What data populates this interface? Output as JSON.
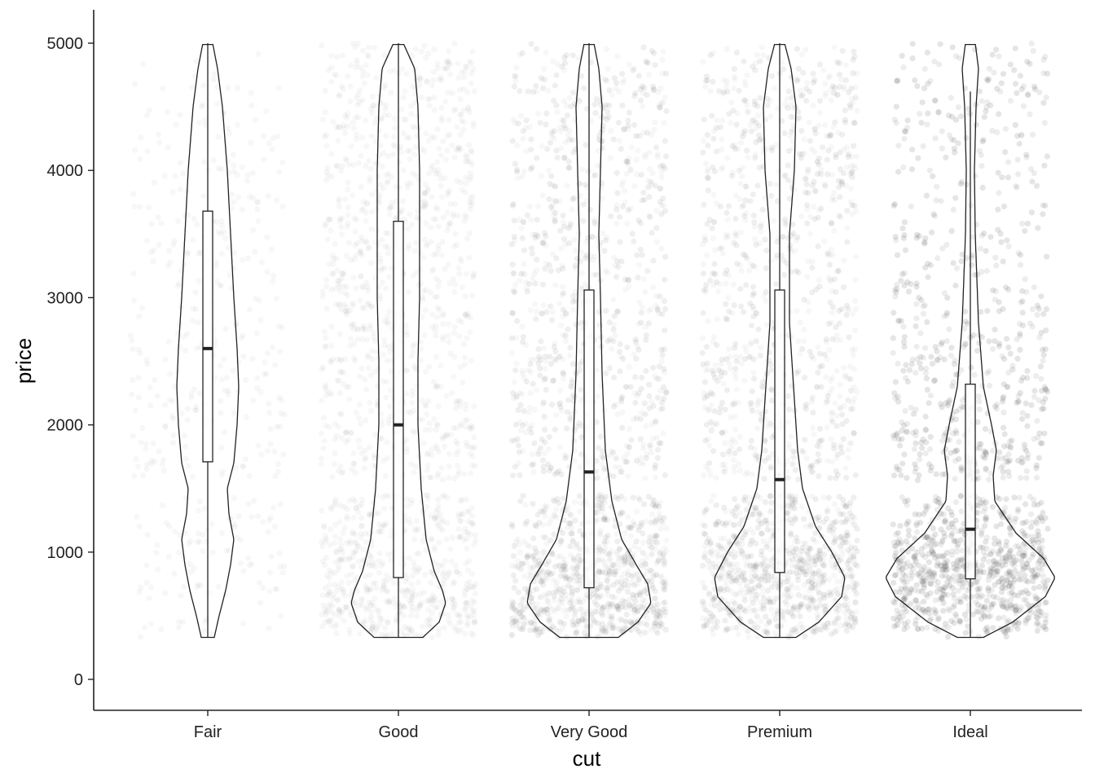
{
  "chart_data": {
    "type": "violin",
    "title": "",
    "xlabel": "cut",
    "ylabel": "price",
    "ylim": [
      -250,
      5250
    ],
    "yticks": [
      0,
      1000,
      2000,
      3000,
      4000,
      5000
    ],
    "ytick_labels": [
      "0",
      "1000",
      "2000",
      "3000",
      "4000",
      "5000"
    ],
    "categories": [
      "Fair",
      "Good",
      "Very Good",
      "Premium",
      "Ideal"
    ],
    "grid": false,
    "legend": "none",
    "colors": {
      "ink": "#222222",
      "points": "#5a5a5a",
      "background": "#ffffff"
    },
    "point_gap": [
      1450,
      1560
    ],
    "groups": [
      {
        "name": "Fair",
        "n_points": 420,
        "point_alpha": 0.05,
        "box": {
          "q1": 1710,
          "median": 2600,
          "q3": 3680,
          "whisker_low": 330,
          "whisker_high": 5000
        },
        "violin": [
          [
            330,
            8
          ],
          [
            500,
            14
          ],
          [
            700,
            22
          ],
          [
            900,
            28
          ],
          [
            1100,
            32
          ],
          [
            1300,
            26
          ],
          [
            1500,
            24
          ],
          [
            1700,
            32
          ],
          [
            2000,
            36
          ],
          [
            2300,
            38
          ],
          [
            2600,
            36
          ],
          [
            3000,
            32
          ],
          [
            3500,
            28
          ],
          [
            4000,
            24
          ],
          [
            4500,
            18
          ],
          [
            4800,
            12
          ],
          [
            5000,
            6
          ]
        ]
      },
      {
        "name": "Good",
        "n_points": 1500,
        "point_alpha": 0.05,
        "box": {
          "q1": 800,
          "median": 2000,
          "q3": 3600,
          "whisker_low": 330,
          "whisker_high": 5000
        },
        "violin": [
          [
            330,
            30
          ],
          [
            450,
            50
          ],
          [
            600,
            58
          ],
          [
            700,
            54
          ],
          [
            850,
            44
          ],
          [
            1100,
            34
          ],
          [
            1500,
            28
          ],
          [
            2000,
            24
          ],
          [
            2500,
            24
          ],
          [
            3000,
            26
          ],
          [
            3500,
            26
          ],
          [
            4000,
            26
          ],
          [
            4500,
            24
          ],
          [
            4800,
            20
          ],
          [
            5000,
            6
          ]
        ]
      },
      {
        "name": "Very Good",
        "n_points": 2600,
        "point_alpha": 0.05,
        "box": {
          "q1": 720,
          "median": 1630,
          "q3": 3060,
          "whisker_low": 330,
          "whisker_high": 5000
        },
        "violin": [
          [
            330,
            36
          ],
          [
            450,
            60
          ],
          [
            600,
            76
          ],
          [
            750,
            72
          ],
          [
            900,
            58
          ],
          [
            1100,
            40
          ],
          [
            1400,
            28
          ],
          [
            1800,
            20
          ],
          [
            2400,
            16
          ],
          [
            3000,
            14
          ],
          [
            3500,
            12
          ],
          [
            4000,
            14
          ],
          [
            4500,
            16
          ],
          [
            4800,
            12
          ],
          [
            5000,
            6
          ]
        ]
      },
      {
        "name": "Premium",
        "n_points": 2600,
        "point_alpha": 0.05,
        "box": {
          "q1": 840,
          "median": 1570,
          "q3": 3060,
          "whisker_low": 330,
          "whisker_high": 5000
        },
        "violin": [
          [
            330,
            20
          ],
          [
            450,
            48
          ],
          [
            650,
            76
          ],
          [
            800,
            80
          ],
          [
            1000,
            64
          ],
          [
            1200,
            44
          ],
          [
            1500,
            28
          ],
          [
            1800,
            22
          ],
          [
            2200,
            18
          ],
          [
            2800,
            12
          ],
          [
            3500,
            12
          ],
          [
            4000,
            18
          ],
          [
            4500,
            20
          ],
          [
            4800,
            14
          ],
          [
            5000,
            6
          ]
        ]
      },
      {
        "name": "Ideal",
        "n_points": 3600,
        "point_alpha": 0.055,
        "box": {
          "q1": 790,
          "median": 1180,
          "q3": 2320,
          "whisker_low": 330,
          "whisker_high": 4620
        },
        "violin": [
          [
            330,
            16
          ],
          [
            450,
            52
          ],
          [
            650,
            92
          ],
          [
            800,
            104
          ],
          [
            950,
            90
          ],
          [
            1150,
            56
          ],
          [
            1400,
            30
          ],
          [
            1600,
            28
          ],
          [
            1800,
            32
          ],
          [
            2000,
            26
          ],
          [
            2300,
            16
          ],
          [
            2800,
            10
          ],
          [
            3500,
            6
          ],
          [
            4000,
            5
          ],
          [
            4500,
            7
          ],
          [
            4800,
            10
          ],
          [
            5000,
            6
          ]
        ]
      }
    ]
  }
}
